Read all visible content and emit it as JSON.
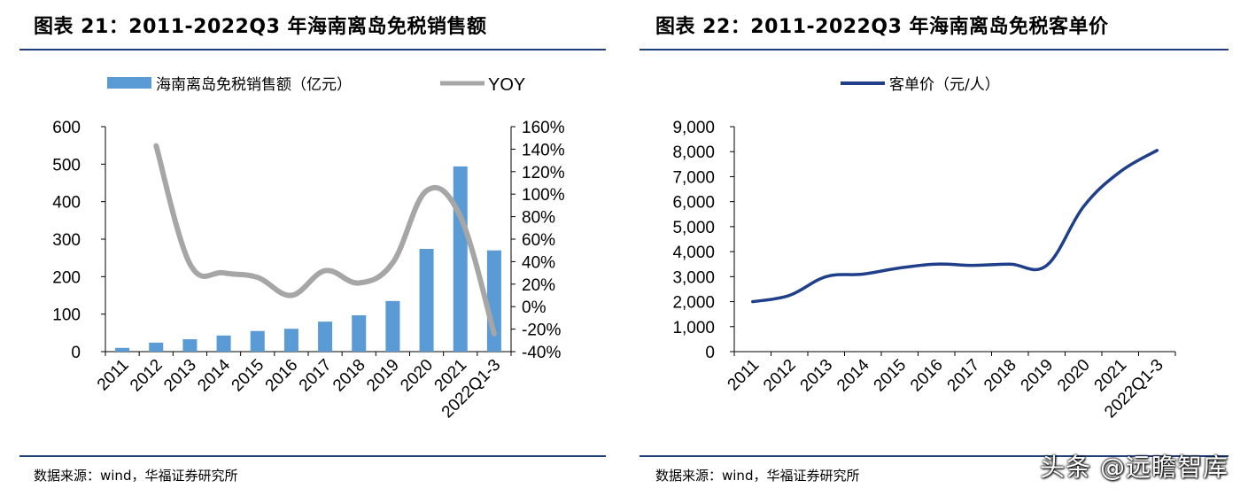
{
  "left_panel": {
    "title": "图表 21：2011-2022Q3 年海南离岛免税销售额",
    "source": "数据来源：wind，华福证券研究所"
  },
  "right_panel": {
    "title": "图表 22：2011-2022Q3 年海南离岛免税客单价",
    "source": "数据来源：wind，华福证券研究所"
  },
  "watermark": "头条 @远瞻智库",
  "colors": {
    "bar": "#5b9bd5",
    "yoy": "#a6a6a6",
    "unit_price": "#1f3f8a",
    "rule": "#1f3f7a",
    "axis": "#000000"
  },
  "chart_data": [
    {
      "type": "bar",
      "categories": [
        "2011",
        "2012",
        "2013",
        "2014",
        "2015",
        "2016",
        "2017",
        "2018",
        "2019",
        "2020",
        "2021",
        "2022Q1-3"
      ],
      "series": [
        {
          "name": "海南离岛免税销售额（亿元）",
          "axis": "left",
          "type": "bar",
          "values": [
            10,
            24,
            33,
            43,
            55,
            61,
            80,
            97,
            135,
            274,
            494,
            270
          ]
        },
        {
          "name": "YOY",
          "axis": "right",
          "type": "line",
          "values": [
            null,
            143,
            38,
            30,
            26,
            10,
            32,
            21,
            39,
            103,
            80,
            -24
          ]
        }
      ],
      "y_left": {
        "lim": [
          0,
          600
        ],
        "ticks": [
          "0",
          "100",
          "200",
          "300",
          "400",
          "500",
          "600"
        ],
        "tick_values": [
          0,
          100,
          200,
          300,
          400,
          500,
          600
        ]
      },
      "y_right": {
        "lim": [
          -40,
          160
        ],
        "ticks": [
          "-40%",
          "-20%",
          "0%",
          "20%",
          "40%",
          "60%",
          "80%",
          "100%",
          "120%",
          "140%",
          "160%"
        ],
        "tick_values": [
          -40,
          -20,
          0,
          20,
          40,
          60,
          80,
          100,
          120,
          140,
          160
        ]
      },
      "legend": [
        "海南离岛免税销售额（亿元）",
        "YOY"
      ],
      "legend_position": "top-center",
      "grid": false
    },
    {
      "type": "line",
      "categories": [
        "2011",
        "2012",
        "2013",
        "2014",
        "2015",
        "2016",
        "2017",
        "2018",
        "2019",
        "2020",
        "2021",
        "2022Q1-3"
      ],
      "series": [
        {
          "name": "客单价（元/人）",
          "values": [
            2000,
            2250,
            3000,
            3100,
            3350,
            3500,
            3450,
            3500,
            3450,
            5800,
            7200,
            8050
          ]
        }
      ],
      "y": {
        "lim": [
          0,
          9000
        ],
        "ticks": [
          "0",
          "1,000",
          "2,000",
          "3,000",
          "4,000",
          "5,000",
          "6,000",
          "7,000",
          "8,000",
          "9,000"
        ],
        "tick_values": [
          0,
          1000,
          2000,
          3000,
          4000,
          5000,
          6000,
          7000,
          8000,
          9000
        ]
      },
      "legend": [
        "客单价（元/人）"
      ],
      "legend_position": "top-center",
      "grid": false
    }
  ]
}
